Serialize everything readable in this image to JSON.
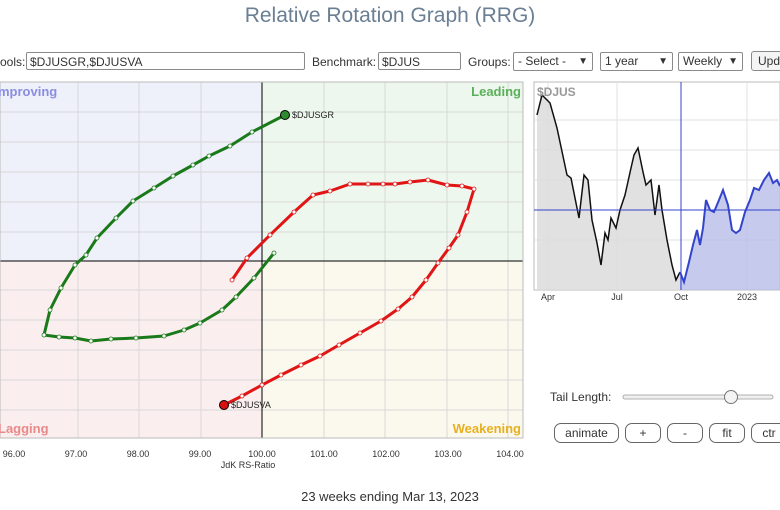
{
  "title": "Relative Rotation Graph (RRG)",
  "toolbar": {
    "symbols_label": "ools:",
    "symbols_value": "$DJUSGR,$DJUSVA",
    "benchmark_label": "Benchmark:",
    "benchmark_value": "$DJUS",
    "groups_label": "Groups:",
    "groups_value": "- Select -",
    "period_value": "1 year",
    "frequency_value": "Weekly",
    "update_label": "Upd"
  },
  "rrg": {
    "quadrants": {
      "improving": "mproving",
      "leading": "Leading",
      "lagging": "Lagging",
      "weakening": "Weakening"
    },
    "colors": {
      "improving": "#eef0fa",
      "leading": "#eef7ee",
      "lagging": "#fbeeee",
      "weakening": "#fbf8ee"
    },
    "x_ticks": [
      "96.00",
      "97.00",
      "98.00",
      "99.00",
      "100.00",
      "101.00",
      "102.00",
      "103.00",
      "104.00"
    ],
    "x_axis_label": "JdK RS-Ratio",
    "series": [
      {
        "name": "$DJUSGR",
        "color": "#1a7a1a",
        "head_color": "#2e8b2e"
      },
      {
        "name": "$DJUSVA",
        "color": "#e01515",
        "head_color": "#d81010"
      }
    ]
  },
  "minichart": {
    "title": "$DJUS",
    "x_labels": [
      "Apr",
      "Jul",
      "Oct",
      "2023"
    ]
  },
  "tail": {
    "label": "Tail Length:",
    "level": 0.72
  },
  "buttons": {
    "animate": "animate",
    "plus": "+",
    "minus": "-",
    "fit": "fit",
    "ctr": "ctr"
  },
  "footer": "23 weeks ending Mar 13, 2023"
}
